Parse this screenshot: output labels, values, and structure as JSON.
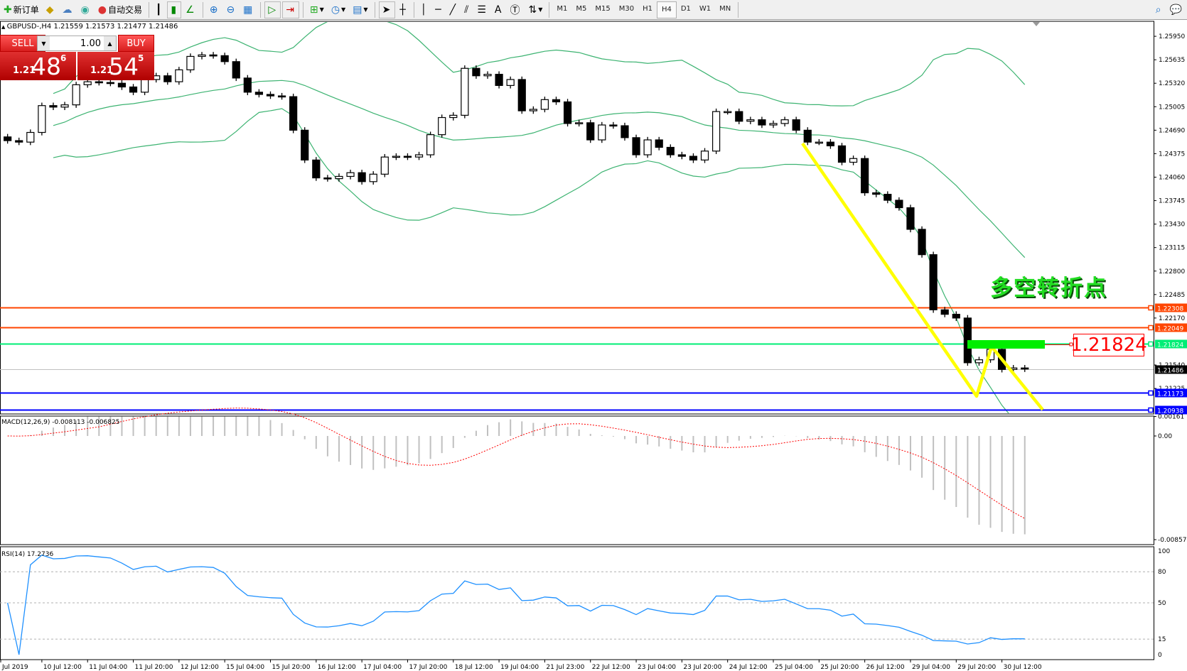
{
  "toolbar": {
    "new_order": "新订单",
    "auto_trading": "自动交易",
    "timeframes": [
      "M1",
      "M5",
      "M15",
      "M30",
      "H1",
      "H4",
      "D1",
      "W1",
      "MN"
    ],
    "active_timeframe": "H4"
  },
  "chart_header": "GBPUSD-,H4  1.21559 1.21573 1.21477 1.21486",
  "trade_panel": {
    "sell_label": "SELL",
    "buy_label": "BUY",
    "lot": "1.00",
    "sell_small": "1.21",
    "sell_big": "48",
    "sell_sup": "6",
    "buy_small": "1.21",
    "buy_big": "54",
    "buy_sup": "5"
  },
  "price_axis": [
    "1.25950",
    "1.25635",
    "1.25320",
    "1.25005",
    "1.24690",
    "1.24375",
    "1.24060",
    "1.23745",
    "1.23430",
    "1.23115",
    "1.22800",
    "1.22485",
    "1.22170",
    "1.21540",
    "1.21225"
  ],
  "hlines": [
    {
      "price": 1.22308,
      "label": "1.22308",
      "color": "#ff4500"
    },
    {
      "price": 1.22049,
      "label": "1.22049",
      "color": "#ff4500"
    },
    {
      "price": 1.21824,
      "label": "1.21824",
      "color": "#00ee76"
    },
    {
      "price": 1.21486,
      "label": "1.21486",
      "color": "#000000",
      "bid": true
    },
    {
      "price": 1.21173,
      "label": "1.21173",
      "color": "#0000ff"
    },
    {
      "price": 1.20938,
      "label": "1.20938",
      "color": "#0000ff"
    }
  ],
  "annotation_text": "多空转折点",
  "annotation_price": "1.21824",
  "colors": {
    "bands": "#3cb371",
    "trend": "#ffff00",
    "zone": "#00ee00",
    "macd_signal": "#ff0000",
    "rsi": "#1e90ff"
  },
  "chart_data": {
    "type": "candlestick",
    "symbol": "GBPUSD-",
    "timeframe": "H4",
    "first_open": 1.246,
    "closes": [
      1.2455,
      1.2453,
      1.2466,
      1.2502,
      1.25,
      1.2503,
      1.253,
      1.2534,
      1.2533,
      1.2532,
      1.2527,
      1.252,
      1.2537,
      1.2542,
      1.2534,
      1.255,
      1.2568,
      1.257,
      1.2569,
      1.2561,
      1.2539,
      1.252,
      1.2517,
      1.2515,
      1.2514,
      1.2469,
      1.2429,
      1.2405,
      1.2404,
      1.2407,
      1.2412,
      1.24,
      1.241,
      1.2433,
      1.2434,
      1.2433,
      1.2436,
      1.2463,
      1.2486,
      1.2489,
      1.2552,
      1.2542,
      1.2544,
      1.2529,
      1.2537,
      1.2495,
      1.2497,
      1.251,
      1.2507,
      1.2478,
      1.2479,
      1.2456,
      1.2476,
      1.2475,
      1.2459,
      1.2436,
      1.2456,
      1.2446,
      1.2436,
      1.2434,
      1.2429,
      1.2441,
      1.2494,
      1.2494,
      1.2481,
      1.2483,
      1.2476,
      1.2478,
      1.2483,
      1.2469,
      1.2453,
      1.2453,
      1.2448,
      1.2426,
      1.2431,
      1.2385,
      1.2383,
      1.2375,
      1.2365,
      1.2336,
      1.2302,
      1.2228,
      1.2222,
      1.2217,
      1.2157,
      1.2161,
      1.2175,
      1.2148,
      1.215,
      1.21486
    ],
    "ylim": [
      1.20513,
      1.2617
    ],
    "x_labels": [
      "Jul 2019",
      "10 Jul 12:00",
      "11 Jul 04:00",
      "11 Jul 20:00",
      "12 Jul 12:00",
      "15 Jul 04:00",
      "15 Jul 20:00",
      "16 Jul 12:00",
      "17 Jul 04:00",
      "17 Jul 20:00",
      "18 Jul 12:00",
      "19 Jul 04:00",
      "21 Jul 23:00",
      "22 Jul 12:00",
      "23 Jul 04:00",
      "23 Jul 20:00",
      "24 Jul 12:00",
      "25 Jul 04:00",
      "25 Jul 20:00",
      "26 Jul 12:00",
      "29 Jul 04:00",
      "29 Jul 20:00",
      "30 Jul 12:00"
    ],
    "indicators": {
      "bands": {
        "period": 20,
        "deviation": 2
      },
      "macd": {
        "label": "MACD(12,26,9) -0.008113 -0.006825",
        "axis": [
          "0.00161",
          "0.00",
          "-0.008577"
        ],
        "ylim": [
          -0.008577,
          0.00161
        ]
      },
      "rsi": {
        "label": "RSI(14) 17.2736",
        "axis": [
          "100",
          "80",
          "50",
          "15",
          "0"
        ],
        "levels": [
          80,
          50,
          15
        ]
      }
    }
  }
}
